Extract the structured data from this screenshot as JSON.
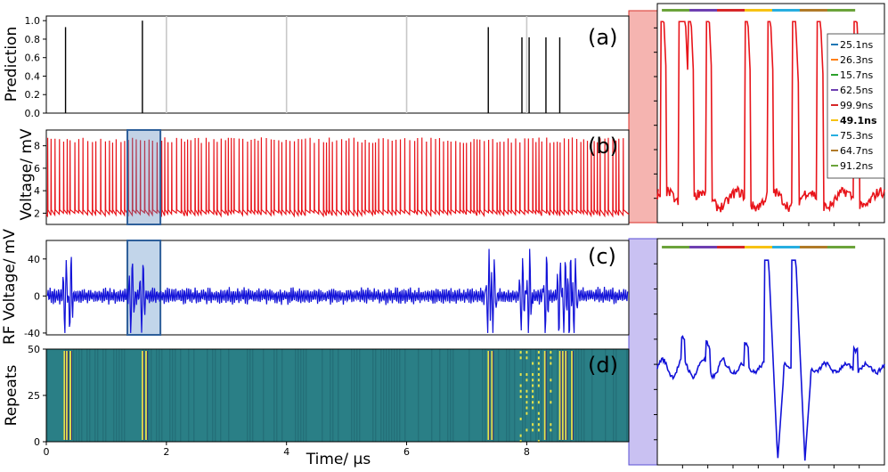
{
  "figure": {
    "x_axis_label": "Time/ μs",
    "x_ticks": [
      "0",
      "2",
      "4",
      "6",
      "8"
    ],
    "x_tick_values": [
      0,
      2,
      4,
      6,
      8
    ],
    "x_range": [
      0,
      9.7
    ]
  },
  "chart_data": [
    {
      "id": "a",
      "panel_label": "(a)",
      "type": "bar",
      "title": "",
      "ylabel": "Prediction",
      "yticks": [
        "0.0",
        "0.2",
        "0.4",
        "0.6",
        "0.8",
        "1.0"
      ],
      "ylim": [
        0,
        1.05
      ],
      "grid_x": [
        2,
        4,
        6,
        8
      ],
      "x": [
        0.32,
        1.6,
        7.36,
        7.92,
        8.04,
        8.32,
        8.55
      ],
      "values": [
        0.93,
        1.0,
        0.93,
        0.82,
        0.82,
        0.82,
        0.82
      ],
      "color": "#000000"
    },
    {
      "id": "b",
      "panel_label": "(b)",
      "type": "line",
      "ylabel": "Voltage/ mV",
      "yticks": [
        "2",
        "4",
        "6",
        "8"
      ],
      "ylim": [
        1,
        9.4
      ],
      "baseline": 1.9,
      "spike_peak": 8.5,
      "spike_count": 150,
      "highlight_range": [
        1.35,
        1.9
      ],
      "color": "#e8141a",
      "highlight_color": "#4f7fb8"
    },
    {
      "id": "c",
      "panel_label": "(c)",
      "type": "line",
      "ylabel": "RF Voltage/ mV",
      "yticks": [
        "-40",
        "0",
        "40"
      ],
      "ylim": [
        -42,
        60
      ],
      "events_x": [
        0.32,
        0.4,
        1.42,
        1.6,
        7.36,
        7.45,
        7.92,
        8.04,
        8.32,
        8.55,
        8.63,
        8.72,
        8.8
      ],
      "event_amplitude": 52,
      "small_amplitude": 10,
      "highlight_range": [
        1.35,
        1.9
      ],
      "color": "#1212d8",
      "highlight_color": "#4f86c4"
    },
    {
      "id": "d",
      "panel_label": "(d)",
      "type": "heatmap",
      "ylabel": "Repeats",
      "yticks": [
        "0",
        "25",
        "50"
      ],
      "ylim": [
        0,
        50
      ],
      "bright_columns_x": [
        0.3,
        0.34,
        0.4,
        1.6,
        1.66,
        7.36,
        7.42,
        8.3,
        8.55,
        8.6,
        8.65,
        8.75
      ],
      "dotted_columns_x": [
        7.9,
        8.0,
        8.1,
        8.2,
        8.4
      ],
      "base_color": "#2a7f86",
      "stripe_color": "#247079",
      "bright_color": "#e8e44a"
    },
    {
      "id": "inset_b",
      "type": "line",
      "description_of": "zoom of highlighted window in (b)",
      "ylim": [
        1,
        9.5
      ],
      "spike_x_frac": [
        0.02,
        0.1,
        0.115,
        0.14,
        0.22,
        0.39,
        0.49,
        0.6,
        0.71,
        0.87
      ],
      "baseline": 1.9,
      "peak": 8.8,
      "color": "#e8141a",
      "legend": [
        "25.1ns",
        "26.3ns",
        "15.7ns",
        "62.5ns",
        "99.9ns",
        "49.1ns",
        "75.3ns",
        "64.7ns",
        "91.2ns"
      ],
      "legend_colors": [
        "#1f77b4",
        "#ff7f0e",
        "#2ca02c",
        "#6e3fb1",
        "#d62728",
        "#f7c213",
        "#27aee0",
        "#b07a28",
        "#6ba33a"
      ],
      "legend_bold_index": 5,
      "bar_colors": [
        "#6ba33a",
        "#6e3fb1",
        "#d62728",
        "#f7c213",
        "#27aee0",
        "#b07a28",
        "#6ba33a"
      ],
      "bar_span_frac": [
        0.02,
        0.87
      ]
    },
    {
      "id": "inset_c",
      "type": "line",
      "description_of": "zoom of highlighted window in (c)",
      "ylim": [
        -45,
        60
      ],
      "pulses_x_frac": [
        0.49,
        0.61
      ],
      "color": "#1212d8",
      "bar_colors": [
        "#6ba33a",
        "#6e3fb1",
        "#d62728",
        "#f7c213",
        "#27aee0",
        "#b07a28",
        "#6ba33a"
      ],
      "bar_span_frac": [
        0.02,
        0.87
      ]
    }
  ]
}
